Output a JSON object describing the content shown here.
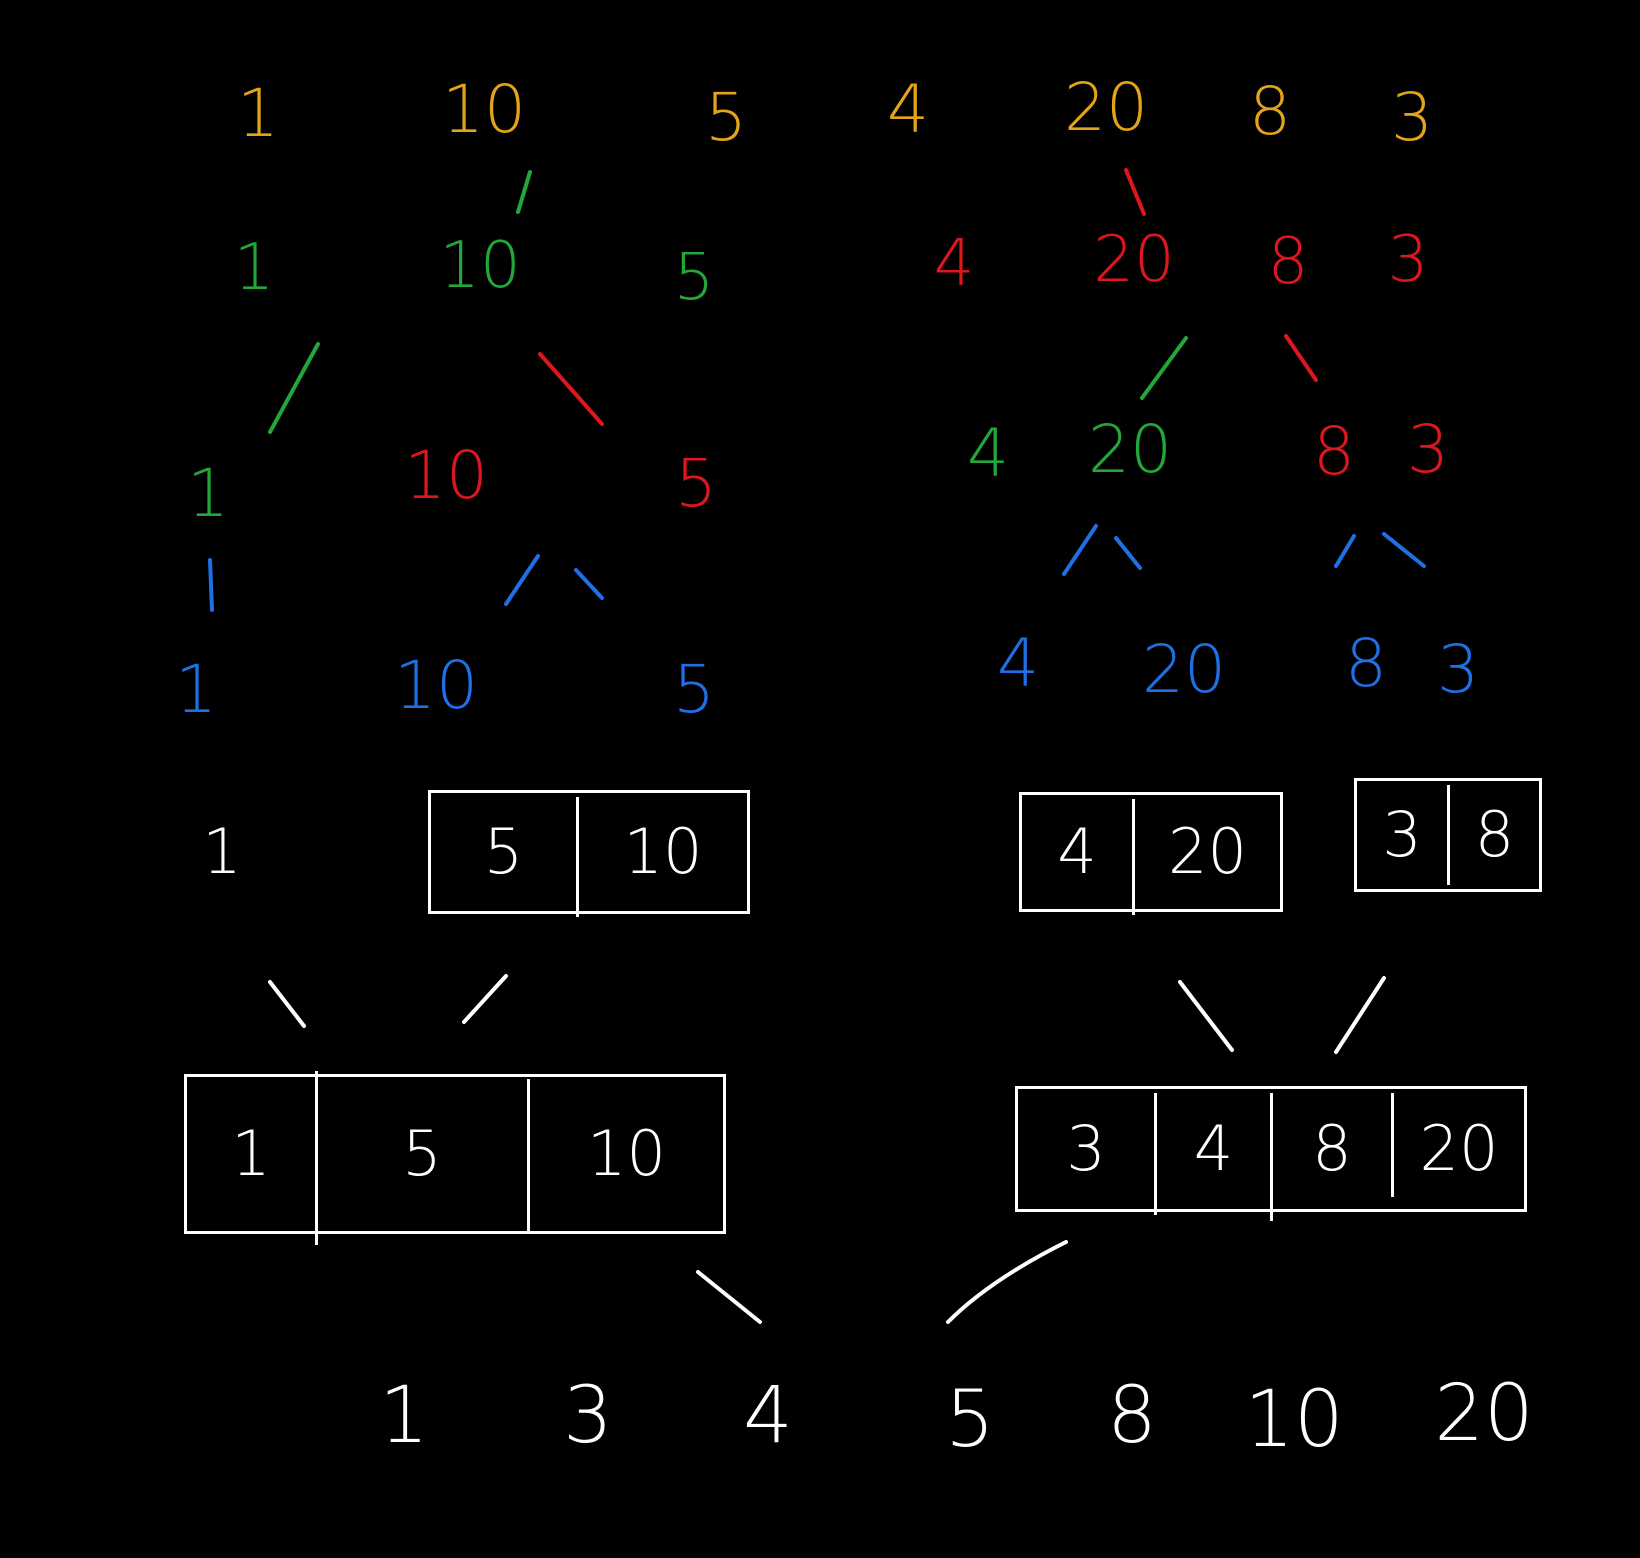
{
  "rows": {
    "input": [
      "1",
      "10",
      "5",
      "4",
      "20",
      "8",
      "3"
    ],
    "split1_left": [
      "1",
      "10",
      "5"
    ],
    "split1_right": [
      "4",
      "20",
      "8",
      "3"
    ],
    "split2_left": [
      "1",
      "10",
      "5"
    ],
    "split2_right": [
      "4",
      "20",
      "8",
      "3"
    ],
    "leaves_left": [
      "1",
      "10",
      "5"
    ],
    "leaves_right": [
      "4",
      "20",
      "8",
      "3"
    ]
  },
  "merge1": {
    "single": "1",
    "box_a": [
      "5",
      "10"
    ],
    "box_b": [
      "4",
      "20"
    ],
    "box_c": [
      "3",
      "8"
    ]
  },
  "merge2": {
    "left": [
      "1",
      "5",
      "10"
    ],
    "right": [
      "3",
      "4",
      "8",
      "20"
    ]
  },
  "result": [
    "1",
    "3",
    "4",
    "5",
    "8",
    "10",
    "20"
  ],
  "colors": {
    "level0": "#e4a41a",
    "level1_left": "#22a83a",
    "level1_right": "#e0161e",
    "level3": "#1f6fe5",
    "merge": "#ffffff",
    "background": "#000000"
  }
}
